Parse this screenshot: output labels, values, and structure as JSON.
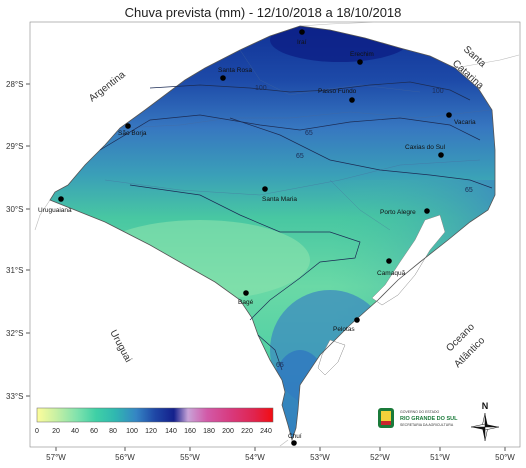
{
  "title": "Chuva prevista (mm) - 12/10/2018 a 18/10/2018",
  "lat_labels": [
    "28°S",
    "29°S",
    "30°S",
    "31°S",
    "32°S",
    "33°S"
  ],
  "lon_labels": [
    "57°W",
    "56°W",
    "55°W",
    "54°W",
    "53°W",
    "52°W",
    "51°W",
    "50°W"
  ],
  "regions": {
    "argentina": "Argentina",
    "uruguai": "Uruguai",
    "santa_catarina_1": "Santa",
    "santa_catarina_2": "Catarina",
    "oceano_1": "Oceano",
    "oceano_2": "Atlântico"
  },
  "cities": [
    {
      "name": "Iraí"
    },
    {
      "name": "Erechim"
    },
    {
      "name": "Santa Rosa"
    },
    {
      "name": "Passo Fundo"
    },
    {
      "name": "Vacaria"
    },
    {
      "name": "São Borja"
    },
    {
      "name": "Caxias do Sul"
    },
    {
      "name": "Santa Maria"
    },
    {
      "name": "Uruguaiana"
    },
    {
      "name": "Porto Alegre"
    },
    {
      "name": "Camaquã"
    },
    {
      "name": "Bagé"
    },
    {
      "name": "Pelotas"
    },
    {
      "name": "Chuí"
    }
  ],
  "contours": [
    "100",
    "100",
    "65",
    "65",
    "65",
    "65"
  ],
  "legend": {
    "ticks": [
      "0",
      "20",
      "40",
      "60",
      "80",
      "100",
      "120",
      "140",
      "160",
      "180",
      "200",
      "220",
      "240"
    ],
    "colors": [
      "#fdfd9b",
      "#c8f0a4",
      "#80e2ad",
      "#3fd0a6",
      "#30b8b0",
      "#3585c4",
      "#1f47a6",
      "#14208c",
      "#c8a3d8",
      "#d25aa8",
      "#d83a7e",
      "#e0244f",
      "#f20d12"
    ]
  },
  "logo": {
    "line1": "GOVERNO DO ESTADO",
    "line2": "RIO GRANDE DO SUL",
    "line3": "SECRETARIA DA AGRICULTURA"
  },
  "north": "N"
}
